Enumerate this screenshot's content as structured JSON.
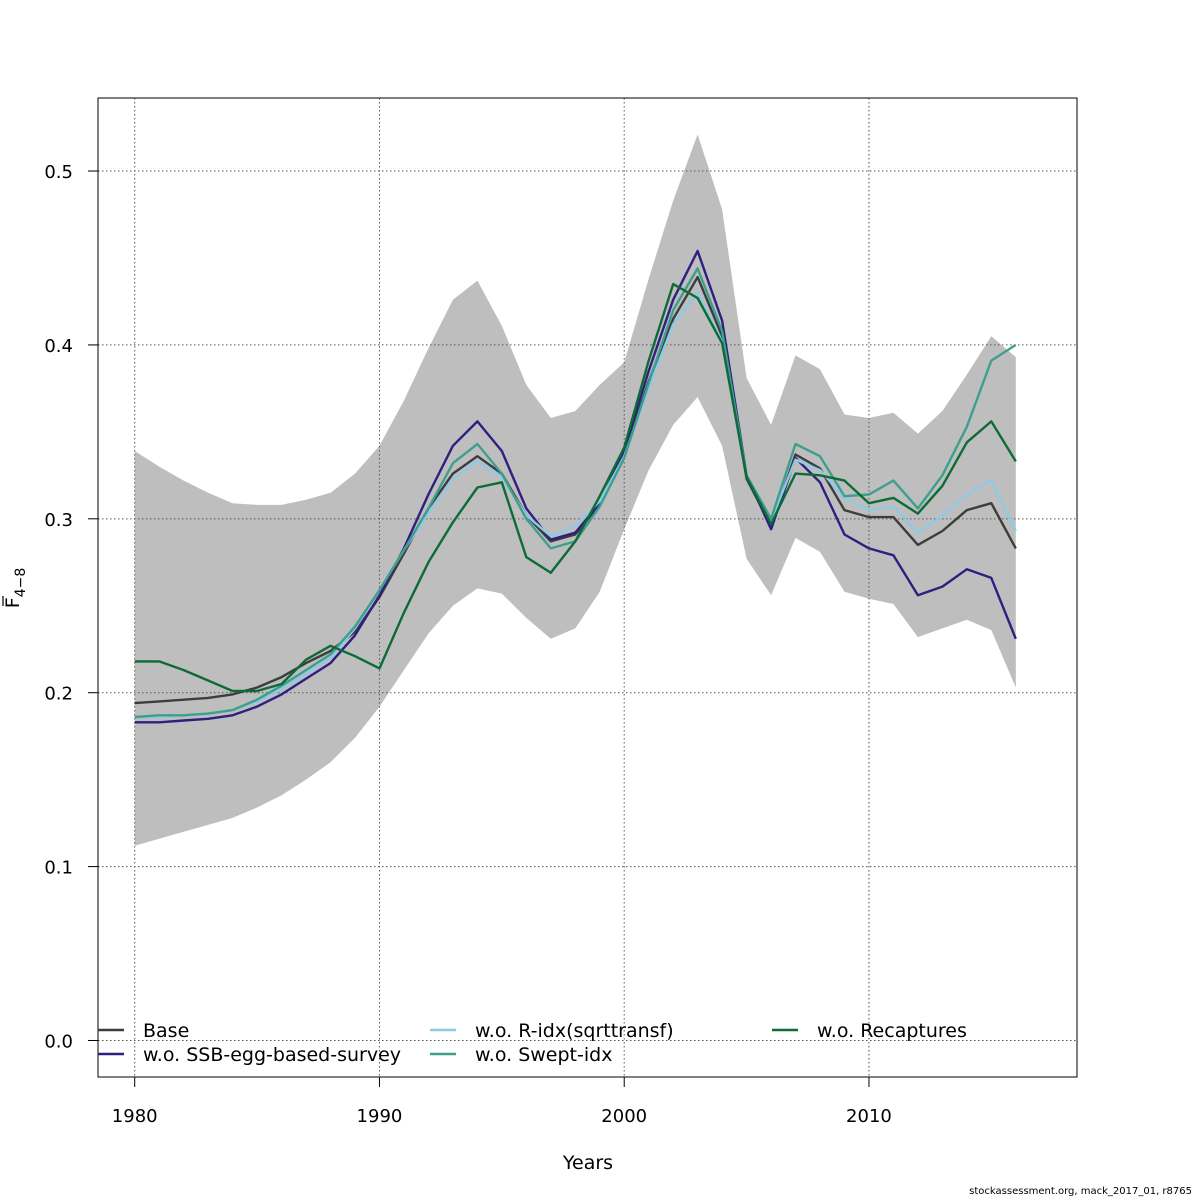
{
  "chart_data": {
    "type": "line",
    "title": "",
    "xlabel": "Years",
    "ylabel": {
      "main": "F",
      "sub": "4−8",
      "overbar": true
    },
    "xlim": [
      1978.5,
      2018.5
    ],
    "ylim": [
      -0.021,
      0.542
    ],
    "x_ticks": [
      1980,
      1990,
      2000,
      2010
    ],
    "y_ticks": [
      0.0,
      0.1,
      0.2,
      0.3,
      0.4,
      0.5
    ],
    "y_tick_labels": [
      "0.0",
      "0.1",
      "0.2",
      "0.3",
      "0.4",
      "0.5"
    ],
    "grid": true,
    "x": [
      1980,
      1981,
      1982,
      1983,
      1984,
      1985,
      1986,
      1987,
      1988,
      1989,
      1990,
      1991,
      1992,
      1993,
      1994,
      1995,
      1996,
      1997,
      1998,
      1999,
      2000,
      2001,
      2002,
      2003,
      2004,
      2005,
      2006,
      2007,
      2008,
      2009,
      2010,
      2011,
      2012,
      2013,
      2014,
      2015,
      2016
    ],
    "confidence_band": {
      "name": "Base confidence interval",
      "color": "#bebebe",
      "upper": [
        0.339,
        0.33,
        0.322,
        0.315,
        0.309,
        0.308,
        0.308,
        0.311,
        0.315,
        0.326,
        0.342,
        0.368,
        0.398,
        0.426,
        0.437,
        0.411,
        0.377,
        0.358,
        0.362,
        0.377,
        0.39,
        0.438,
        0.483,
        0.521,
        0.478,
        0.381,
        0.354,
        0.394,
        0.386,
        0.36,
        0.358,
        0.361,
        0.349,
        0.362,
        0.383,
        0.405,
        0.393
      ],
      "lower": [
        0.112,
        0.116,
        0.12,
        0.124,
        0.128,
        0.134,
        0.141,
        0.15,
        0.16,
        0.174,
        0.192,
        0.213,
        0.234,
        0.25,
        0.26,
        0.257,
        0.243,
        0.231,
        0.237,
        0.258,
        0.294,
        0.328,
        0.354,
        0.37,
        0.342,
        0.277,
        0.256,
        0.289,
        0.281,
        0.258,
        0.254,
        0.251,
        0.232,
        0.237,
        0.242,
        0.236,
        0.203
      ]
    },
    "series": [
      {
        "name": "Base",
        "color": "#3d3d3d",
        "values": [
          0.194,
          0.195,
          0.196,
          0.197,
          0.199,
          0.203,
          0.209,
          0.217,
          0.224,
          0.235,
          0.255,
          0.28,
          0.306,
          0.326,
          0.336,
          0.326,
          0.302,
          0.287,
          0.291,
          0.308,
          0.337,
          0.379,
          0.415,
          0.439,
          0.405,
          0.323,
          0.296,
          0.337,
          0.329,
          0.305,
          0.301,
          0.301,
          0.285,
          0.293,
          0.305,
          0.309,
          0.283
        ]
      },
      {
        "name": "w.o. SSB-egg-based-survey",
        "color": "#2e1f80",
        "values": [
          0.183,
          0.183,
          0.184,
          0.185,
          0.187,
          0.192,
          0.199,
          0.208,
          0.217,
          0.233,
          0.256,
          0.283,
          0.314,
          0.342,
          0.356,
          0.339,
          0.306,
          0.288,
          0.292,
          0.309,
          0.339,
          0.385,
          0.426,
          0.454,
          0.414,
          0.325,
          0.294,
          0.335,
          0.321,
          0.291,
          0.283,
          0.279,
          0.256,
          0.261,
          0.271,
          0.266,
          0.231
        ]
      },
      {
        "name": "w.o. R-idx(sqrttransf)",
        "color": "#8ecae6",
        "values": [
          0.186,
          0.186,
          0.187,
          0.188,
          0.19,
          0.195,
          0.202,
          0.211,
          0.22,
          0.237,
          0.259,
          0.282,
          0.303,
          0.323,
          0.333,
          0.324,
          0.302,
          0.29,
          0.296,
          0.31,
          0.336,
          0.375,
          0.412,
          0.43,
          0.402,
          0.325,
          0.299,
          0.334,
          0.328,
          0.312,
          0.305,
          0.307,
          0.292,
          0.302,
          0.314,
          0.322,
          0.293
        ]
      },
      {
        "name": "w.o. Swept-idx",
        "color": "#3d9f8e",
        "values": [
          0.186,
          0.187,
          0.187,
          0.188,
          0.19,
          0.196,
          0.204,
          0.213,
          0.222,
          0.238,
          0.259,
          0.282,
          0.306,
          0.332,
          0.343,
          0.326,
          0.3,
          0.283,
          0.287,
          0.307,
          0.335,
          0.378,
          0.42,
          0.444,
          0.408,
          0.325,
          0.3,
          0.343,
          0.336,
          0.313,
          0.314,
          0.322,
          0.306,
          0.325,
          0.353,
          0.391,
          0.4
        ]
      },
      {
        "name": "w.o. Recaptures",
        "color": "#0d6b36",
        "values": [
          0.218,
          0.218,
          0.213,
          0.207,
          0.201,
          0.201,
          0.205,
          0.219,
          0.227,
          0.221,
          0.214,
          0.246,
          0.275,
          0.298,
          0.318,
          0.321,
          0.278,
          0.269,
          0.287,
          0.313,
          0.341,
          0.391,
          0.435,
          0.427,
          0.401,
          0.324,
          0.297,
          0.326,
          0.325,
          0.322,
          0.309,
          0.312,
          0.303,
          0.319,
          0.344,
          0.356,
          0.333
        ]
      }
    ],
    "legend": {
      "placement": "bottom-left",
      "entries": [
        "Base",
        "w.o. SSB-egg-based-survey",
        "w.o. R-idx(sqrttransf)",
        "w.o. Swept-idx",
        "w.o. Recaptures"
      ]
    }
  },
  "footer": "stockassessment.org, mack_2017_01, r8765"
}
